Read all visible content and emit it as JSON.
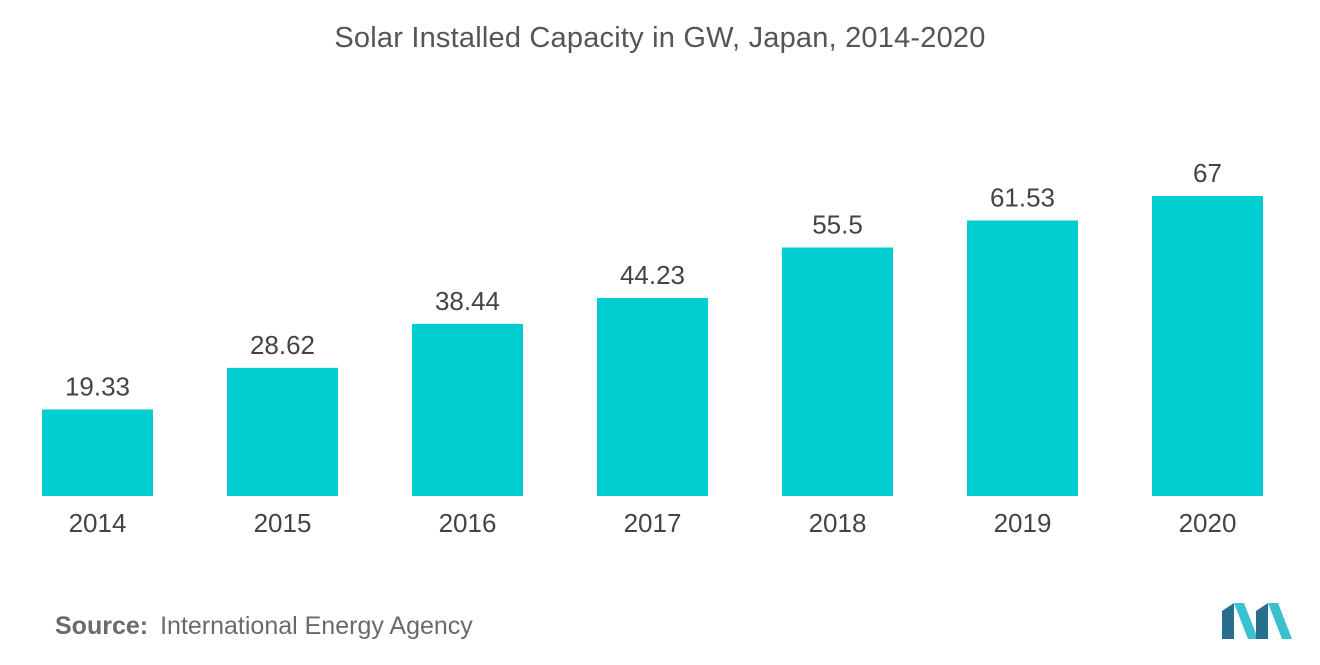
{
  "chart_data": {
    "type": "bar",
    "title": "Solar Installed Capacity in GW, Japan, 2014-2020",
    "categories": [
      "2014",
      "2015",
      "2016",
      "2017",
      "2018",
      "2019",
      "2020"
    ],
    "values": [
      19.33,
      28.62,
      38.44,
      44.23,
      55.5,
      61.53,
      67
    ],
    "value_labels": [
      "19.33",
      "28.62",
      "38.44",
      "44.23",
      "55.5",
      "61.53",
      "67"
    ],
    "ylim": [
      0,
      67
    ],
    "grid": false,
    "y_axis_visible": false,
    "legend": "none",
    "bar_color": "#00ced1"
  },
  "source": {
    "label": "Source:",
    "text": "International Energy Agency"
  },
  "colors": {
    "title": "#555555",
    "tick": "#444444",
    "value_label": "#444444",
    "logo_dark": "#2a6e8f",
    "logo_light": "#39c1d2"
  },
  "logo": {
    "icon": "brand-logo-icon"
  }
}
